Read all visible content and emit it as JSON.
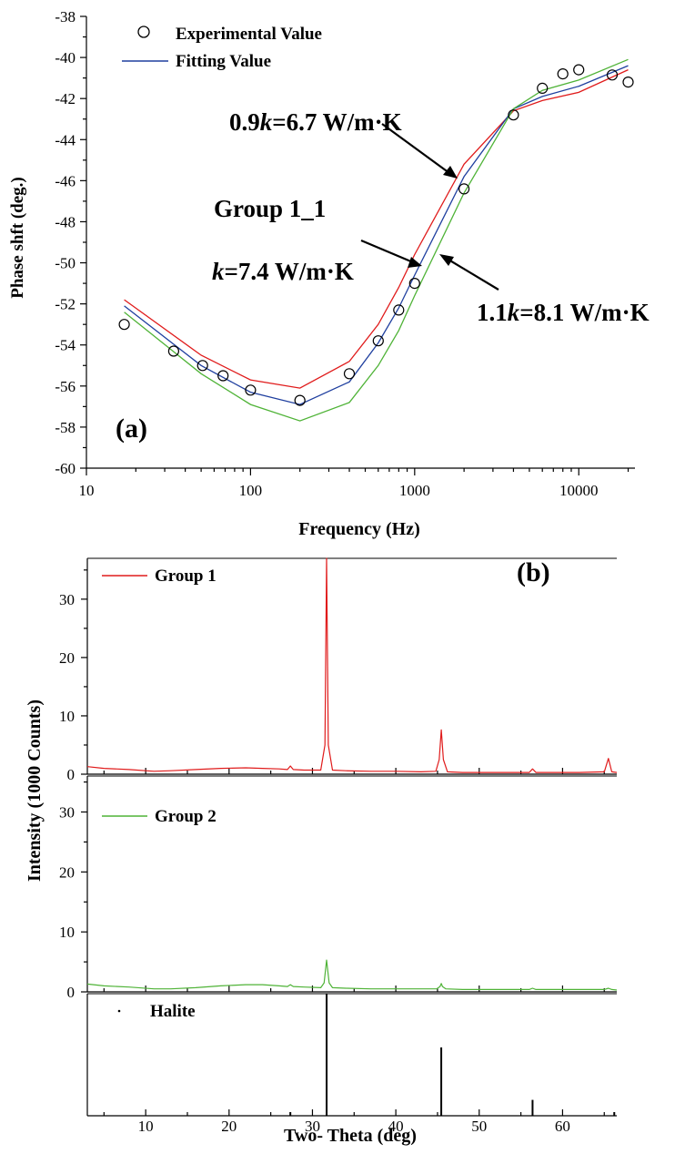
{
  "chart_data": [
    {
      "type": "line",
      "panel_label": "(a)",
      "xlabel": "Frequency (Hz)",
      "ylabel": "Phase shft (deg.)",
      "x_scale": "log",
      "xlim": [
        10,
        22000
      ],
      "ylim": [
        -60,
        -38
      ],
      "x_ticks": [
        "10",
        "100",
        "1000",
        "10000"
      ],
      "y_ticks": [
        "-38",
        "-40",
        "-42",
        "-44",
        "-46",
        "-48",
        "-50",
        "-52",
        "-54",
        "-56",
        "-58",
        "-60"
      ],
      "legend": {
        "placement": "top-left",
        "items": [
          {
            "label": "Experimental Value",
            "marker": "open-circle"
          },
          {
            "label": "Fitting Value",
            "marker": "line",
            "color": "#1f3f9f"
          }
        ]
      },
      "annotations": {
        "group": "Group 1_1",
        "upper": "0.9k=6.7 W/m·K",
        "upper_prefix": "0.9",
        "upper_k": "k",
        "upper_suffix": "=6.7 W/m·K",
        "middle": "k=7.4 W/m·K",
        "middle_k": "k",
        "middle_suffix": "=7.4 W/m·K",
        "lower": "1.1k=8.1 W/m·K",
        "lower_prefix": "1.1",
        "lower_k": "k",
        "lower_suffix": "=8.1 W/m·K"
      },
      "experimental": {
        "x": [
          17,
          34,
          51,
          68,
          100,
          200,
          400,
          600,
          800,
          1000,
          2000,
          4000,
          6000,
          8000,
          10000,
          16000,
          20000
        ],
        "y": [
          -53.0,
          -54.3,
          -55.0,
          -55.5,
          -56.2,
          -56.7,
          -55.4,
          -53.8,
          -52.3,
          -51.0,
          -46.4,
          -42.8,
          -41.5,
          -40.8,
          -40.6,
          -40.85,
          -41.2
        ]
      },
      "series": [
        {
          "color": "#e01b1b",
          "x": [
            17,
            50,
            100,
            200,
            400,
            600,
            800,
            1000,
            2000,
            4000,
            6000,
            10000,
            20000
          ],
          "y": [
            -51.8,
            -54.5,
            -55.7,
            -56.1,
            -54.8,
            -53.0,
            -51.2,
            -49.6,
            -45.2,
            -42.6,
            -42.1,
            -41.7,
            -40.6
          ]
        },
        {
          "color": "#1f3f9f",
          "x": [
            17,
            50,
            100,
            200,
            400,
            600,
            800,
            1000,
            2000,
            4000,
            6000,
            10000,
            20000
          ],
          "y": [
            -52.1,
            -55.0,
            -56.3,
            -56.9,
            -55.8,
            -53.9,
            -52.2,
            -50.6,
            -45.8,
            -42.5,
            -41.9,
            -41.4,
            -40.4
          ]
        },
        {
          "color": "#4fb337",
          "x": [
            17,
            50,
            100,
            200,
            400,
            600,
            800,
            1000,
            2000,
            4000,
            6000,
            10000,
            20000
          ],
          "y": [
            -52.4,
            -55.4,
            -56.9,
            -57.7,
            -56.8,
            -55.0,
            -53.3,
            -51.6,
            -46.6,
            -42.5,
            -41.6,
            -41.1,
            -40.1
          ]
        }
      ]
    },
    {
      "type": "line",
      "panel_label": "(b)",
      "xlabel": "Two- Theta (deg)",
      "ylabel": "Intensity (1000 Counts)",
      "xlim": [
        3,
        66.5
      ],
      "x_ticks": [
        "10",
        "20",
        "30",
        "40",
        "50",
        "60"
      ],
      "panels": [
        {
          "name": "Group 1",
          "color": "#e01b1b",
          "ylim": [
            0,
            37
          ],
          "y_ticks": [
            "0",
            "10",
            "20",
            "30"
          ],
          "x": [
            3,
            5,
            8,
            11,
            13,
            16,
            19,
            22,
            24,
            26,
            27.0,
            27.35,
            27.7,
            29,
            31.0,
            31.5,
            31.7,
            31.9,
            32.4,
            34,
            37,
            40,
            43,
            44.8,
            45.2,
            45.45,
            45.7,
            46.2,
            48,
            51,
            54,
            56.0,
            56.4,
            56.8,
            59,
            62,
            65.0,
            65.5,
            65.9,
            66.5
          ],
          "y": [
            1.3,
            1.0,
            0.8,
            0.5,
            0.6,
            0.8,
            1.0,
            1.1,
            1.0,
            0.9,
            0.8,
            1.4,
            0.8,
            0.7,
            0.7,
            5.0,
            37.0,
            5.0,
            0.7,
            0.6,
            0.5,
            0.5,
            0.4,
            0.5,
            2.5,
            7.6,
            2.5,
            0.4,
            0.3,
            0.3,
            0.3,
            0.3,
            0.9,
            0.3,
            0.3,
            0.3,
            0.4,
            2.7,
            0.4,
            0.3
          ]
        },
        {
          "name": "Group 2",
          "color": "#4fb337",
          "ylim": [
            0,
            36
          ],
          "y_ticks": [
            "0",
            "10",
            "20",
            "30"
          ],
          "x": [
            3,
            5,
            8,
            11,
            13,
            16,
            19,
            22,
            24,
            26,
            27.0,
            27.35,
            27.7,
            29,
            31.0,
            31.4,
            31.7,
            32.0,
            32.4,
            34,
            37,
            40,
            43,
            44.9,
            45.3,
            45.45,
            45.6,
            46.0,
            48,
            51,
            54,
            56.0,
            56.4,
            56.8,
            59,
            62,
            65.0,
            65.5,
            65.9,
            66.5
          ],
          "y": [
            1.3,
            1.0,
            0.8,
            0.5,
            0.5,
            0.7,
            1.0,
            1.2,
            1.2,
            1.0,
            0.9,
            1.2,
            0.9,
            0.8,
            0.7,
            1.5,
            5.3,
            1.5,
            0.7,
            0.6,
            0.5,
            0.5,
            0.5,
            0.5,
            0.9,
            1.4,
            0.9,
            0.5,
            0.4,
            0.4,
            0.4,
            0.4,
            0.6,
            0.4,
            0.4,
            0.4,
            0.4,
            0.6,
            0.4,
            0.3
          ]
        },
        {
          "name": "Halite",
          "color": "#000000",
          "type": "stick",
          "ylim": [
            0,
            100
          ],
          "x": [
            27.35,
            31.7,
            45.45,
            56.4,
            66.2
          ],
          "y": [
            3,
            100,
            56,
            13,
            3
          ]
        }
      ]
    }
  ]
}
